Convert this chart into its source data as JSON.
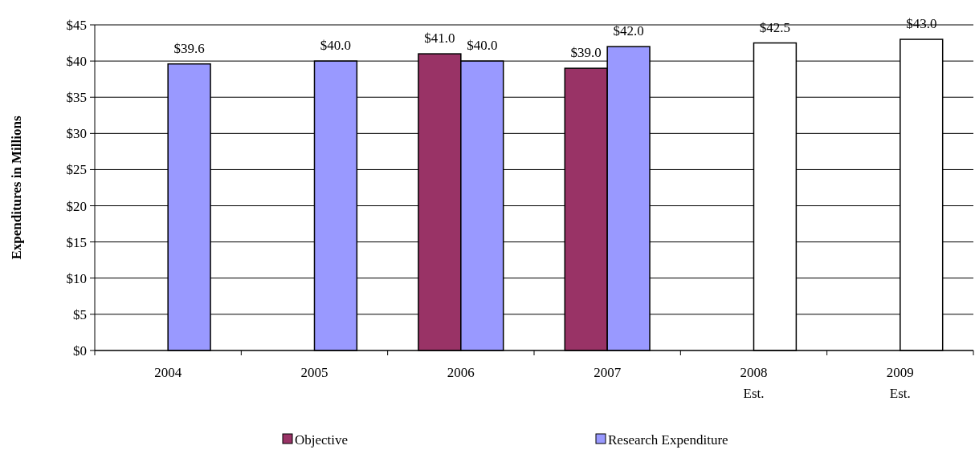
{
  "chart_data": {
    "type": "bar",
    "ylabel": "Expenditures in Millions",
    "categories": [
      "2004",
      "2005",
      "2006",
      "2007",
      "2008\nEst.",
      "2009\nEst."
    ],
    "series": [
      {
        "name": "Objective",
        "color": "#993366",
        "values": [
          null,
          null,
          41.0,
          39.0,
          null,
          null
        ],
        "value_labels": [
          null,
          null,
          "$41.0",
          "$39.0",
          null,
          null
        ]
      },
      {
        "name": "Research Expenditure",
        "color": "#9999ff",
        "colors": [
          "#9999ff",
          "#9999ff",
          "#9999ff",
          "#9999ff",
          "#ffffff",
          "#ffffff"
        ],
        "values": [
          39.6,
          40.0,
          40.0,
          42.0,
          42.5,
          43.0
        ],
        "value_labels": [
          "$39.6",
          "$40.0",
          "$40.0",
          "$42.0",
          "$42.5",
          "$43.0"
        ]
      }
    ],
    "ylim": [
      0,
      45
    ],
    "yticks": [
      {
        "value": 0,
        "label": "$0"
      },
      {
        "value": 5,
        "label": "$5"
      },
      {
        "value": 10,
        "label": "$10"
      },
      {
        "value": 15,
        "label": "$15"
      },
      {
        "value": 20,
        "label": "$20"
      },
      {
        "value": 25,
        "label": "$25"
      },
      {
        "value": 30,
        "label": "$30"
      },
      {
        "value": 35,
        "label": "$35"
      },
      {
        "value": 40,
        "label": "$40"
      },
      {
        "value": 45,
        "label": "$45"
      }
    ],
    "grid": "y",
    "legend": "bottom"
  }
}
